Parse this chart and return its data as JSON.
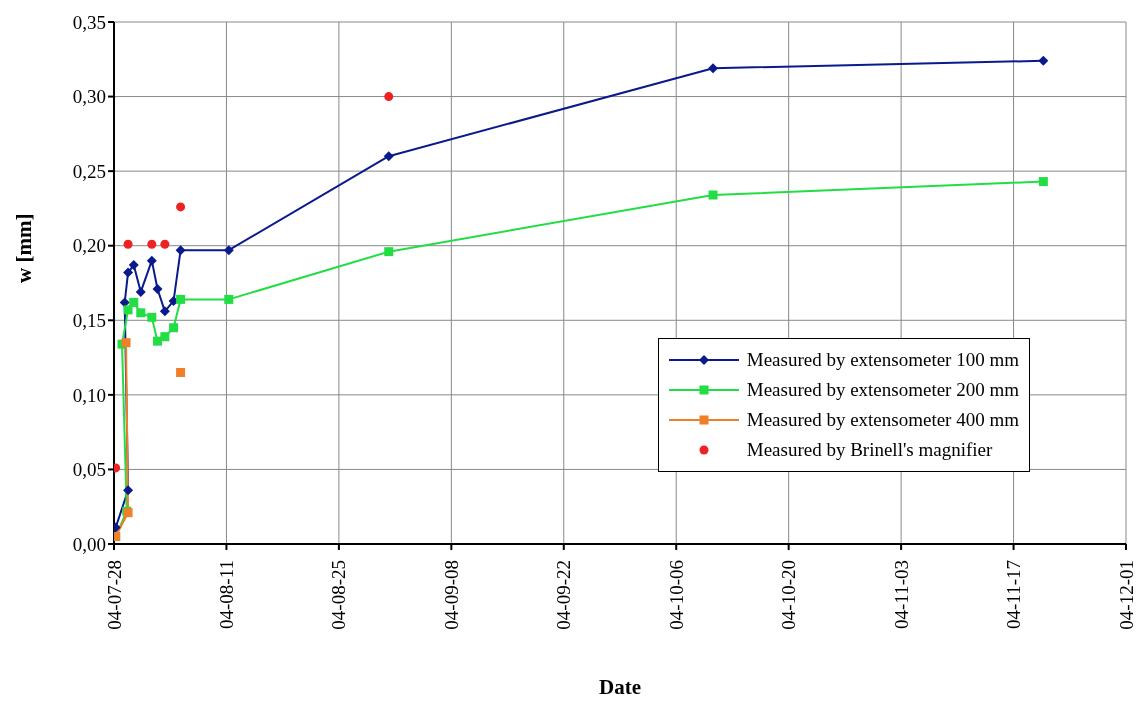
{
  "chart_data": {
    "type": "line",
    "xlabel": "Date",
    "ylabel": "w  [mm]",
    "xlim": [
      "--07-28",
      "--12-01"
    ],
    "xticks": [
      {
        "value": "--07-28",
        "label": "04-07-28"
      },
      {
        "value": "--08-11",
        "label": "04-08-11"
      },
      {
        "value": "--08-25",
        "label": "04-08-25"
      },
      {
        "value": "--09-08",
        "label": "04-09-08"
      },
      {
        "value": "--09-22",
        "label": "04-09-22"
      },
      {
        "value": "--10-06",
        "label": "04-10-06"
      },
      {
        "value": "--10-20",
        "label": "04-10-20"
      },
      {
        "value": "--11-03",
        "label": "04-11-03"
      },
      {
        "value": "--11-17",
        "label": "04-11-17"
      },
      {
        "value": "--12-01",
        "label": "04-12-01"
      }
    ],
    "ylim": [
      0,
      0.35
    ],
    "yticks": [
      {
        "value": 0,
        "label": "0,00"
      },
      {
        "value": 0.05,
        "label": "0,05"
      },
      {
        "value": 0.1,
        "label": "0,10"
      },
      {
        "value": 0.15,
        "label": "0,15"
      },
      {
        "value": 0.2,
        "label": "0,20"
      },
      {
        "value": 0.25,
        "label": "0,25"
      },
      {
        "value": 0.3,
        "label": "0,30"
      },
      {
        "value": 0.35,
        "label": "0,35"
      }
    ],
    "grid": true,
    "legend": "right",
    "series": [
      {
        "name": "Measured by extensometer 100 mm",
        "color": "#0a1a8c",
        "marker": "diamond",
        "x": [
          "--07-28T05:00",
          "--07-29T18:00",
          "--07-29T08:00",
          "--07-29T18:00",
          "--07-30T11:00",
          "--07-31T08:00",
          "--08-01T17:00",
          "--08-02T10:00",
          "--08-03T08:00",
          "--08-04T10:00",
          "--08-05T07:00",
          "--08-11T07:00",
          "--08-31T05:00",
          "--10-10T14:00",
          "--11-20T17:00"
        ],
        "values": [
          0.011,
          0.036,
          0.162,
          0.182,
          0.187,
          0.169,
          0.19,
          0.171,
          0.156,
          0.163,
          0.197,
          0.197,
          0.26,
          0.319,
          0.324
        ]
      },
      {
        "name": "Measured by extensometer 200 mm",
        "color": "#22dd44",
        "marker": "square",
        "x": [
          "--07-28T05:00",
          "--07-29T14:00",
          "--07-29T00:00",
          "--07-29T18:00",
          "--07-30T11:00",
          "--07-31T08:00",
          "--08-01T17:00",
          "--08-02T10:00",
          "--08-03T08:00",
          "--08-04T10:00",
          "--08-05T07:00",
          "--08-11T07:00",
          "--08-31T05:00",
          "--10-10T14:00",
          "--11-20T17:00"
        ],
        "values": [
          0.005,
          0.022,
          0.134,
          0.157,
          0.162,
          0.155,
          0.152,
          0.136,
          0.139,
          0.145,
          0.164,
          0.164,
          0.196,
          0.234,
          0.243
        ]
      },
      {
        "name": "Measured by extensometer 400 mm",
        "color": "#f07f2a",
        "marker": "square",
        "x": [
          "--07-28T05:00",
          "--07-29T18:00",
          "--07-29T12:00",
          "--08-02T00:00",
          "--08-05T07:00"
        ],
        "values": [
          0.005,
          0.021,
          0.135,
          null,
          0.115
        ]
      },
      {
        "name": "Measured by Brinell's magnifier",
        "type": "scatter",
        "color": "#ee2222",
        "marker": "circle",
        "x": [
          "--07-28T05:00",
          "--07-29T18:00",
          "--08-01T17:00",
          "--08-03T08:00",
          "--08-05T07:00",
          "--08-31T05:00"
        ],
        "values": [
          0.051,
          0.201,
          0.201,
          0.201,
          0.226,
          0.3
        ]
      }
    ]
  }
}
